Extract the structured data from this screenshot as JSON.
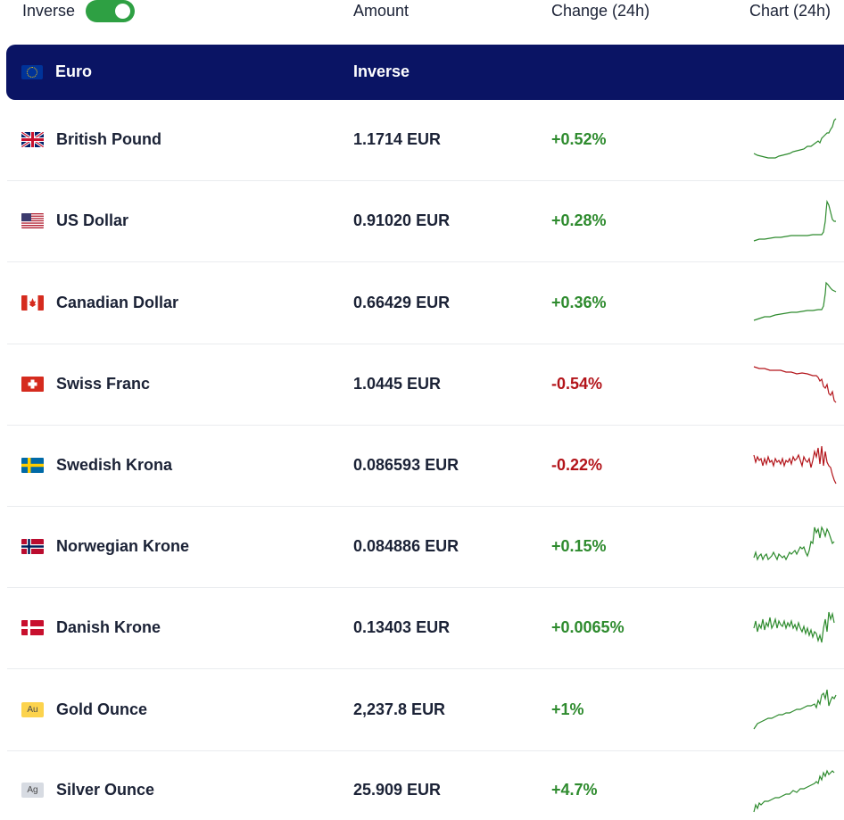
{
  "header": {
    "inverse_label": "Inverse",
    "inverse_toggle_on": true,
    "amount_label": "Amount",
    "change_label": "Change (24h)",
    "chart_label": "Chart (24h)"
  },
  "base": {
    "currency": "Euro",
    "amount_text": "Inverse"
  },
  "colors": {
    "positive": "#2e8b2e",
    "negative": "#b3141a",
    "base_row_bg": "#0a1464",
    "toggle_on": "#2ea043"
  },
  "rows": [
    {
      "name": "British Pound",
      "amount": "1.1714 EUR",
      "change": "+0.52%",
      "trend": "up",
      "flag": "gb-flag-icon"
    },
    {
      "name": "US Dollar",
      "amount": "0.91020 EUR",
      "change": "+0.28%",
      "trend": "up",
      "flag": "us-flag-icon"
    },
    {
      "name": "Canadian Dollar",
      "amount": "0.66429 EUR",
      "change": "+0.36%",
      "trend": "up",
      "flag": "ca-flag-icon"
    },
    {
      "name": "Swiss Franc",
      "amount": "1.0445 EUR",
      "change": "-0.54%",
      "trend": "down",
      "flag": "ch-flag-icon"
    },
    {
      "name": "Swedish Krona",
      "amount": "0.086593 EUR",
      "change": "-0.22%",
      "trend": "down",
      "flag": "se-flag-icon"
    },
    {
      "name": "Norwegian Krone",
      "amount": "0.084886 EUR",
      "change": "+0.15%",
      "trend": "up",
      "flag": "no-flag-icon"
    },
    {
      "name": "Danish Krone",
      "amount": "0.13403 EUR",
      "change": "+0.0065%",
      "trend": "up",
      "flag": "dk-flag-icon"
    },
    {
      "name": "Gold Ounce",
      "amount": "2,237.8 EUR",
      "change": "+1%",
      "trend": "up",
      "flag": "gold-icon",
      "badge": "Au"
    },
    {
      "name": "Silver Ounce",
      "amount": "25.909 EUR",
      "change": "+4.7%",
      "trend": "up",
      "flag": "silver-icon",
      "badge": "Ag"
    }
  ]
}
